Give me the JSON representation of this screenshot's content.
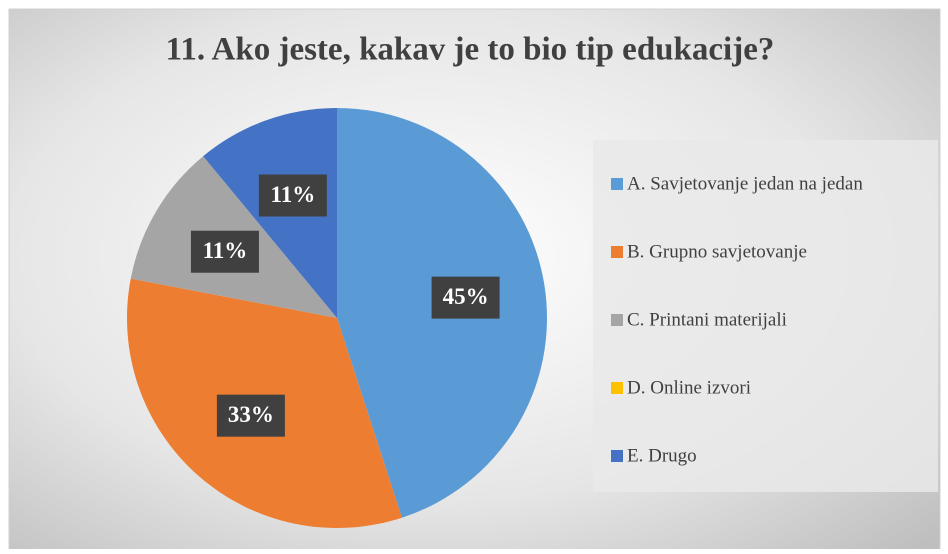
{
  "chart_data": {
    "type": "pie",
    "title": "11. Ako jeste, kakav je to bio tip edukacije?",
    "categories": [
      "A. Savjetovanje jedan na jedan",
      "B. Grupno savjetovanje",
      "C. Printani materijali",
      "D. Online izvori",
      "E. Drugo"
    ],
    "values": [
      45,
      33,
      11,
      0,
      11
    ],
    "value_labels": [
      "45%",
      "33%",
      "11%",
      null,
      "11%"
    ],
    "colors": [
      "#5b9bd5",
      "#ed7d31",
      "#a5a5a5",
      "#ffc000",
      "#4472c4"
    ],
    "legend": "right"
  }
}
